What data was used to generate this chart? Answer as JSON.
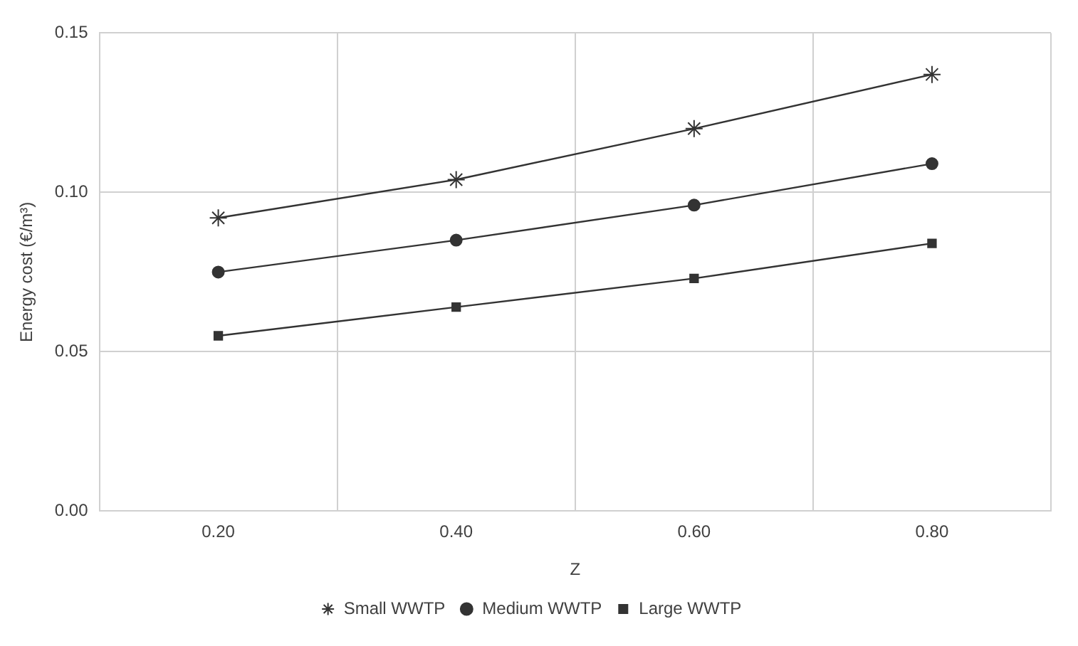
{
  "chart_data": {
    "type": "line",
    "xlabel": "Z",
    "ylabel": "Energy cost (€/m³)",
    "categories": [
      "0.20",
      "0.40",
      "0.60",
      "0.80"
    ],
    "series": [
      {
        "name": "Small WWTP",
        "color": "#333333",
        "marker": "cross",
        "values": [
          0.092,
          0.104,
          0.12,
          0.137
        ]
      },
      {
        "name": "Medium WWTP",
        "color": "#333333",
        "marker": "circle",
        "values": [
          0.075,
          0.085,
          0.096,
          0.109
        ]
      },
      {
        "name": "Large WWTP",
        "color": "#333333",
        "marker": "square",
        "values": [
          0.055,
          0.064,
          0.073,
          0.084
        ]
      }
    ],
    "ylim": [
      0,
      0.15
    ],
    "yticks": [
      {
        "value": 0,
        "label": "0.00"
      },
      {
        "value": 0.05,
        "label": "0.05"
      },
      {
        "value": 0.1,
        "label": "0.10"
      },
      {
        "value": 0.15,
        "label": "0.15"
      }
    ],
    "grid": true,
    "legend": "bottom",
    "line_style": "solid"
  }
}
